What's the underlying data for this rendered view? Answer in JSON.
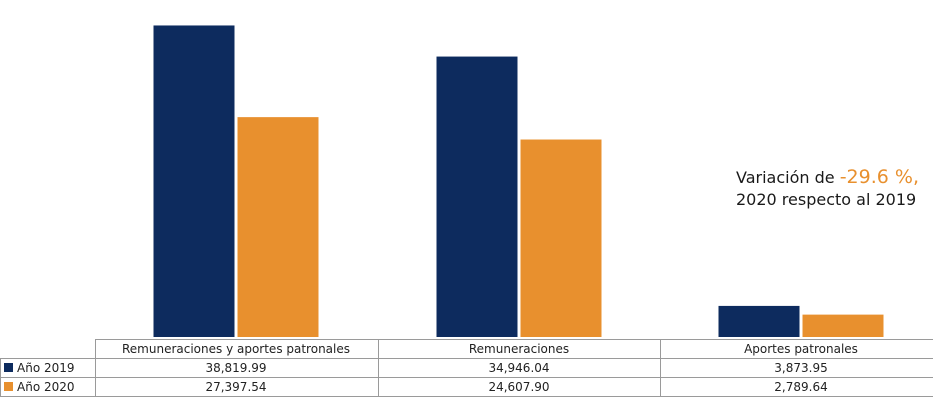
{
  "chart_data": {
    "type": "bar",
    "categories": [
      "Remuneraciones y aportes patronales",
      "Remuneraciones",
      "Aportes patronales"
    ],
    "series": [
      {
        "name": "Año 2019",
        "color": "#0d2b5e",
        "values": [
          38819.99,
          34946.04,
          3873.95
        ],
        "labels": [
          "38,819.99",
          "34,946.04",
          "3,873.95"
        ]
      },
      {
        "name": "Año 2020",
        "color": "#e8902e",
        "values": [
          27397.54,
          24607.9,
          2789.64
        ],
        "labels": [
          "27,397.54",
          "24,607.90",
          "2,789.64"
        ]
      }
    ],
    "ylim": [
      0,
      40000
    ],
    "grid": false,
    "legend": "table-left"
  },
  "annotation": {
    "prefix": "Variación de ",
    "value": "-29.6 %,",
    "line2": "2020 respecto al 2019"
  }
}
